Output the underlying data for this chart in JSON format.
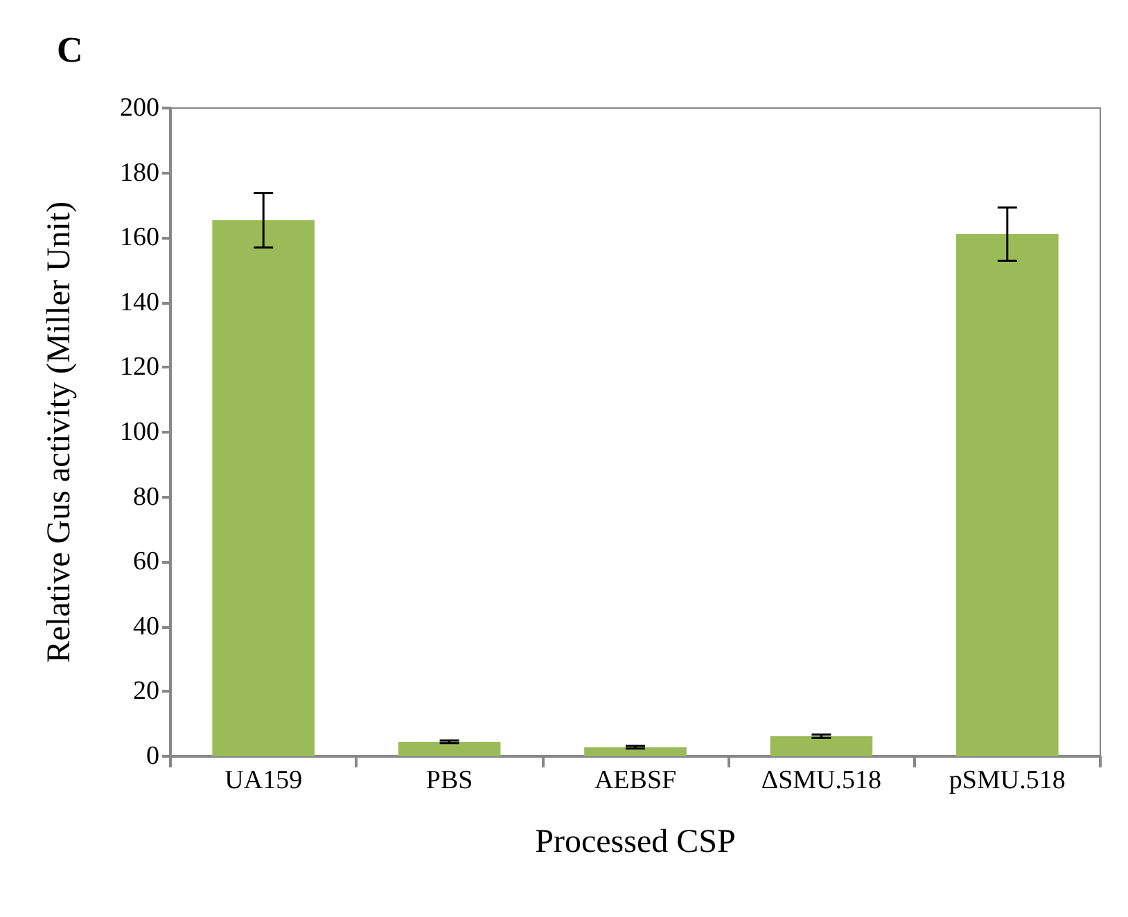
{
  "chart_data": {
    "type": "bar",
    "title": "C",
    "xlabel": "Processed CSP",
    "ylabel": "Relative Gus activity (Miller Unit)",
    "categories": [
      "UA159",
      "PBS",
      "AEBSF",
      "ΔSMU.518",
      "pSMU.518"
    ],
    "values": [
      165.4,
      4.5,
      2.8,
      6.2,
      161.1
    ],
    "errors": [
      8.4,
      0.4,
      0.4,
      0.5,
      8.2
    ],
    "color": "#9bbb59",
    "ylim": [
      0,
      200
    ],
    "yticks": [
      0,
      20,
      40,
      60,
      80,
      100,
      120,
      140,
      160,
      180,
      200
    ],
    "grid": false
  }
}
